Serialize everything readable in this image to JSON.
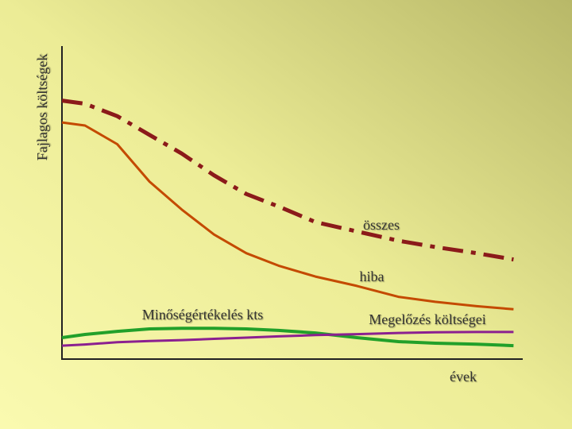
{
  "chart_data": {
    "type": "line",
    "ylabel": "Fajlagos költségek",
    "xlabel": "évek",
    "xlim": [
      0,
      100
    ],
    "ylim": [
      0,
      100
    ],
    "x": [
      0,
      5,
      12,
      19,
      26,
      33,
      40,
      47,
      55,
      64,
      73,
      81,
      90,
      98
    ],
    "series": [
      {
        "name": "összes",
        "color": "#8b1a1a",
        "style": "dashdot",
        "width": 5,
        "values": [
          83,
          82,
          78,
          72,
          66,
          59,
          53,
          49,
          44,
          41,
          38,
          36,
          34,
          32
        ]
      },
      {
        "name": "hiba",
        "color": "#c44a00",
        "style": "solid",
        "width": 3,
        "values": [
          76,
          75,
          69,
          57,
          48,
          40,
          34,
          30,
          26.5,
          23.5,
          20,
          18.4,
          17,
          16
        ]
      },
      {
        "name": "Minőségértékelés kts",
        "color": "#22a02a",
        "style": "solid",
        "width": 4,
        "values": [
          6.9,
          7.9,
          8.9,
          9.7,
          9.9,
          9.9,
          9.7,
          9.2,
          8.4,
          6.9,
          5.6,
          5.1,
          4.8,
          4.3
        ]
      },
      {
        "name": "Megelőzés költségei",
        "color": "#8b2090",
        "style": "solid",
        "width": 3,
        "values": [
          4.3,
          4.7,
          5.4,
          5.8,
          6.1,
          6.5,
          6.9,
          7.3,
          7.7,
          8.0,
          8.4,
          8.6,
          8.7,
          8.7
        ]
      }
    ]
  }
}
